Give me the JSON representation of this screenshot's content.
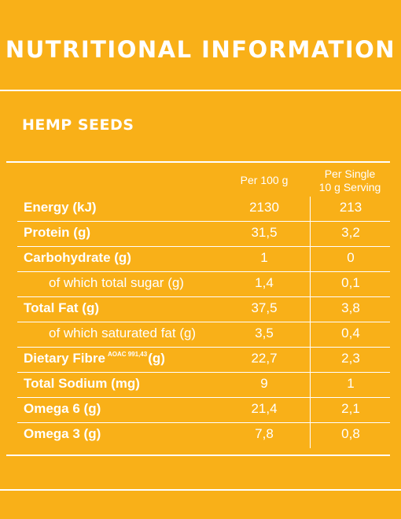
{
  "title": "NUTRITIONAL INFORMATION",
  "subtitle": "HEMP SEEDS",
  "columns": {
    "per100": "Per 100 g",
    "serving_line1": "Per Single",
    "serving_line2": "10 g Serving"
  },
  "rows": [
    {
      "label": "Energy (kJ)",
      "per100": "2130",
      "serving": "213"
    },
    {
      "label": "Protein (g)",
      "per100": "31,5",
      "serving": "3,2"
    },
    {
      "label": "Carbohydrate (g)",
      "per100": "1",
      "serving": "0"
    },
    {
      "label": "of which total sugar (g)",
      "per100": "1,4",
      "serving": "0,1"
    },
    {
      "label": "Total Fat (g)",
      "per100": "37,5",
      "serving": "3,8"
    },
    {
      "label": "of which saturated fat (g)",
      "per100": "3,5",
      "serving": "0,4"
    },
    {
      "label": "Dietary Fibre",
      "label_sup": "AOAC 991,43",
      "label_suffix": "(g)",
      "per100": "22,7",
      "serving": "2,3"
    },
    {
      "label": "Total Sodium (mg)",
      "per100": "9",
      "serving": "1"
    },
    {
      "label": "Omega 6 (g)",
      "per100": "21,4",
      "serving": "2,1"
    },
    {
      "label": "Omega 3 (g)",
      "per100": "7,8",
      "serving": "0,8"
    }
  ]
}
